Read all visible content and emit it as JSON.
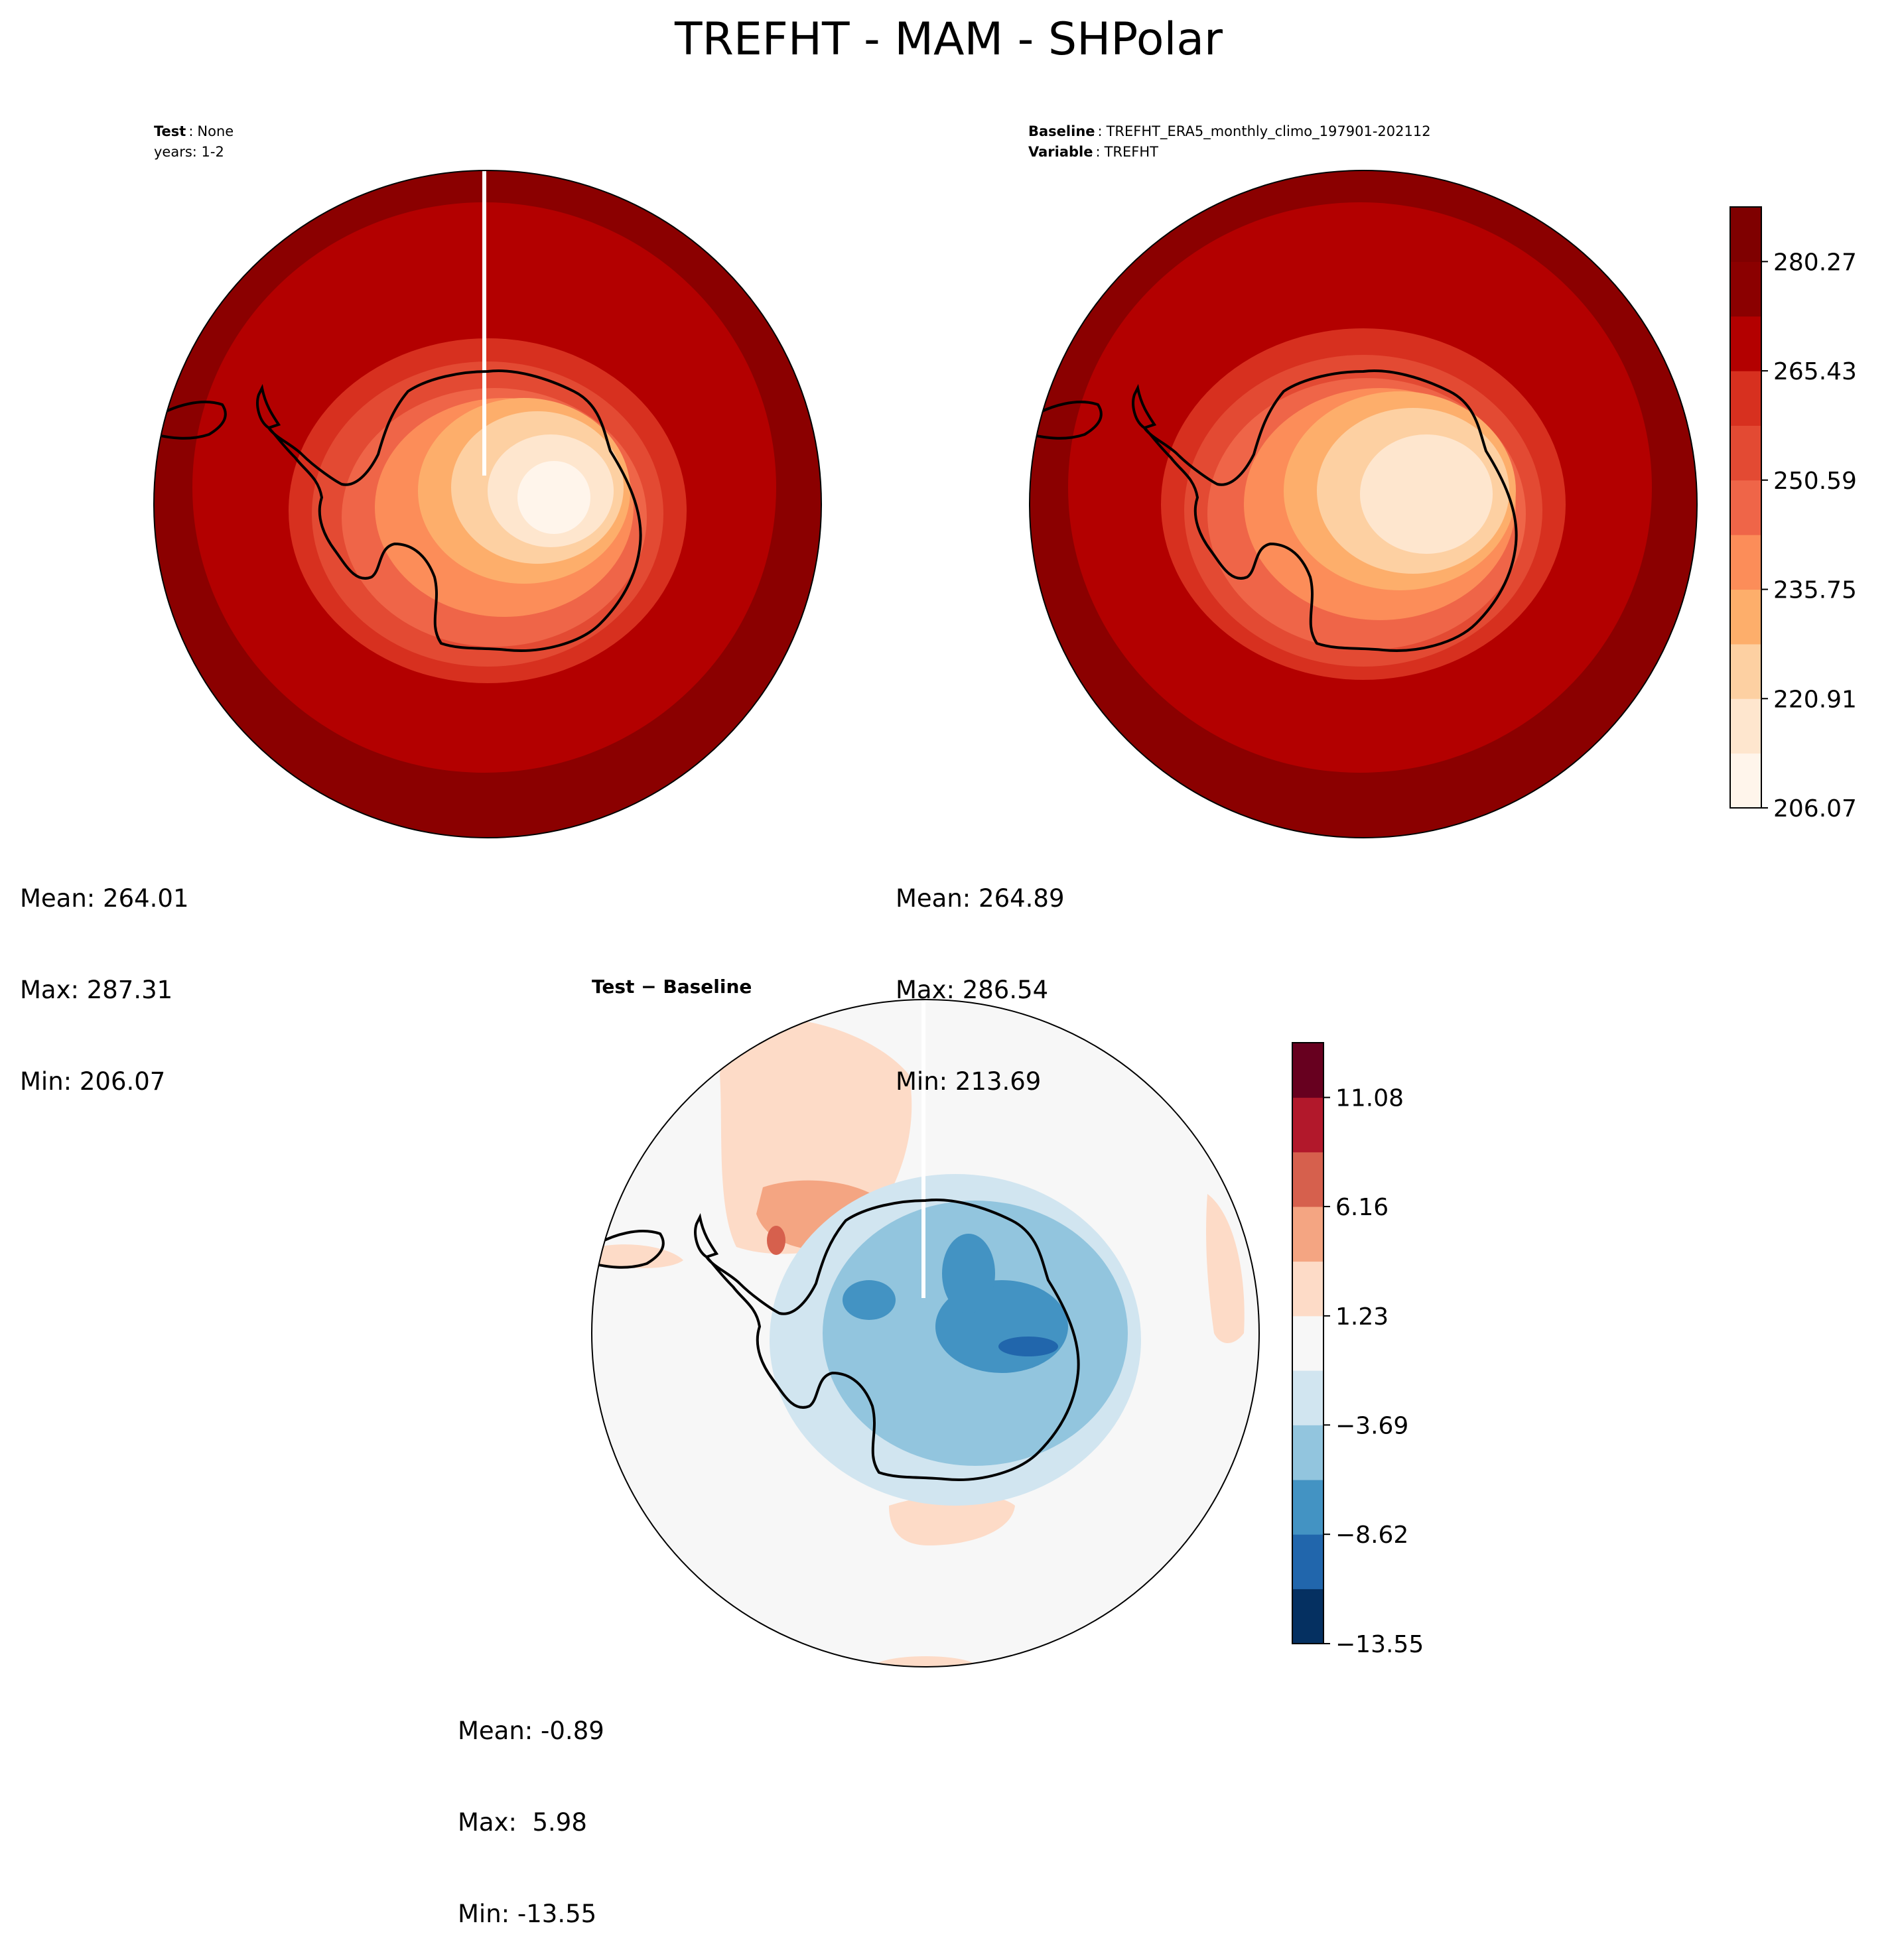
{
  "figure": {
    "title": "TREFHT - MAM - SHPolar"
  },
  "chart_data": [
    {
      "type": "heatmap",
      "name": "test",
      "projection": "south-polar-stereographic",
      "label_title": "Test",
      "label_value": "None",
      "label_years": "years: 1-2",
      "stats": {
        "mean": "Mean: 264.01",
        "max": "Max: 287.31",
        "min": "Min: 206.07"
      },
      "colormap": "Reds"
    },
    {
      "type": "heatmap",
      "name": "baseline",
      "projection": "south-polar-stereographic",
      "label_title": "Baseline",
      "label_value": "TREFHT_ERA5_monthly_climo_197901-202112",
      "label_var_title": "Variable",
      "label_var_value": "TREFHT",
      "stats": {
        "mean": "Mean: 264.89",
        "max": "Max: 286.54",
        "min": "Min: 213.69"
      },
      "colorbar": {
        "levels": [
          206.07,
          213.49,
          220.91,
          228.33,
          235.75,
          243.17,
          250.59,
          258.01,
          265.43,
          272.85,
          280.27,
          287.69
        ],
        "tick_labels": [
          "206.07",
          "220.91",
          "235.75",
          "250.59",
          "265.43",
          "280.27"
        ],
        "colors": [
          "#fff5eb",
          "#fee6ce",
          "#fdd0a2",
          "#fdae6b",
          "#fc8d59",
          "#ef6548",
          "#e34a33",
          "#d7301f",
          "#b30000",
          "#8b0000",
          "#7f0000"
        ]
      }
    },
    {
      "type": "heatmap",
      "name": "difference",
      "projection": "south-polar-stereographic",
      "label_title": "Test − Baseline",
      "stats": {
        "mean": "Mean: -0.89",
        "max": "Max:  5.98",
        "min": "Min: -13.55"
      },
      "colorbar": {
        "levels": [
          -13.55,
          -11.08,
          -8.62,
          -6.16,
          -3.69,
          -1.23,
          1.23,
          3.69,
          6.16,
          8.62,
          11.08,
          13.55
        ],
        "tick_labels": [
          "−13.55",
          "−8.62",
          "−3.69",
          "1.23",
          "6.16",
          "11.08"
        ],
        "colors": [
          "#053061",
          "#2166ac",
          "#4393c3",
          "#92c5de",
          "#d1e5f0",
          "#f7f7f7",
          "#fddbc7",
          "#f4a582",
          "#d6604d",
          "#b2182b",
          "#67001f"
        ]
      }
    }
  ],
  "colors": {
    "outline": "#000000",
    "land": "#000000",
    "background": "#ffffff"
  }
}
